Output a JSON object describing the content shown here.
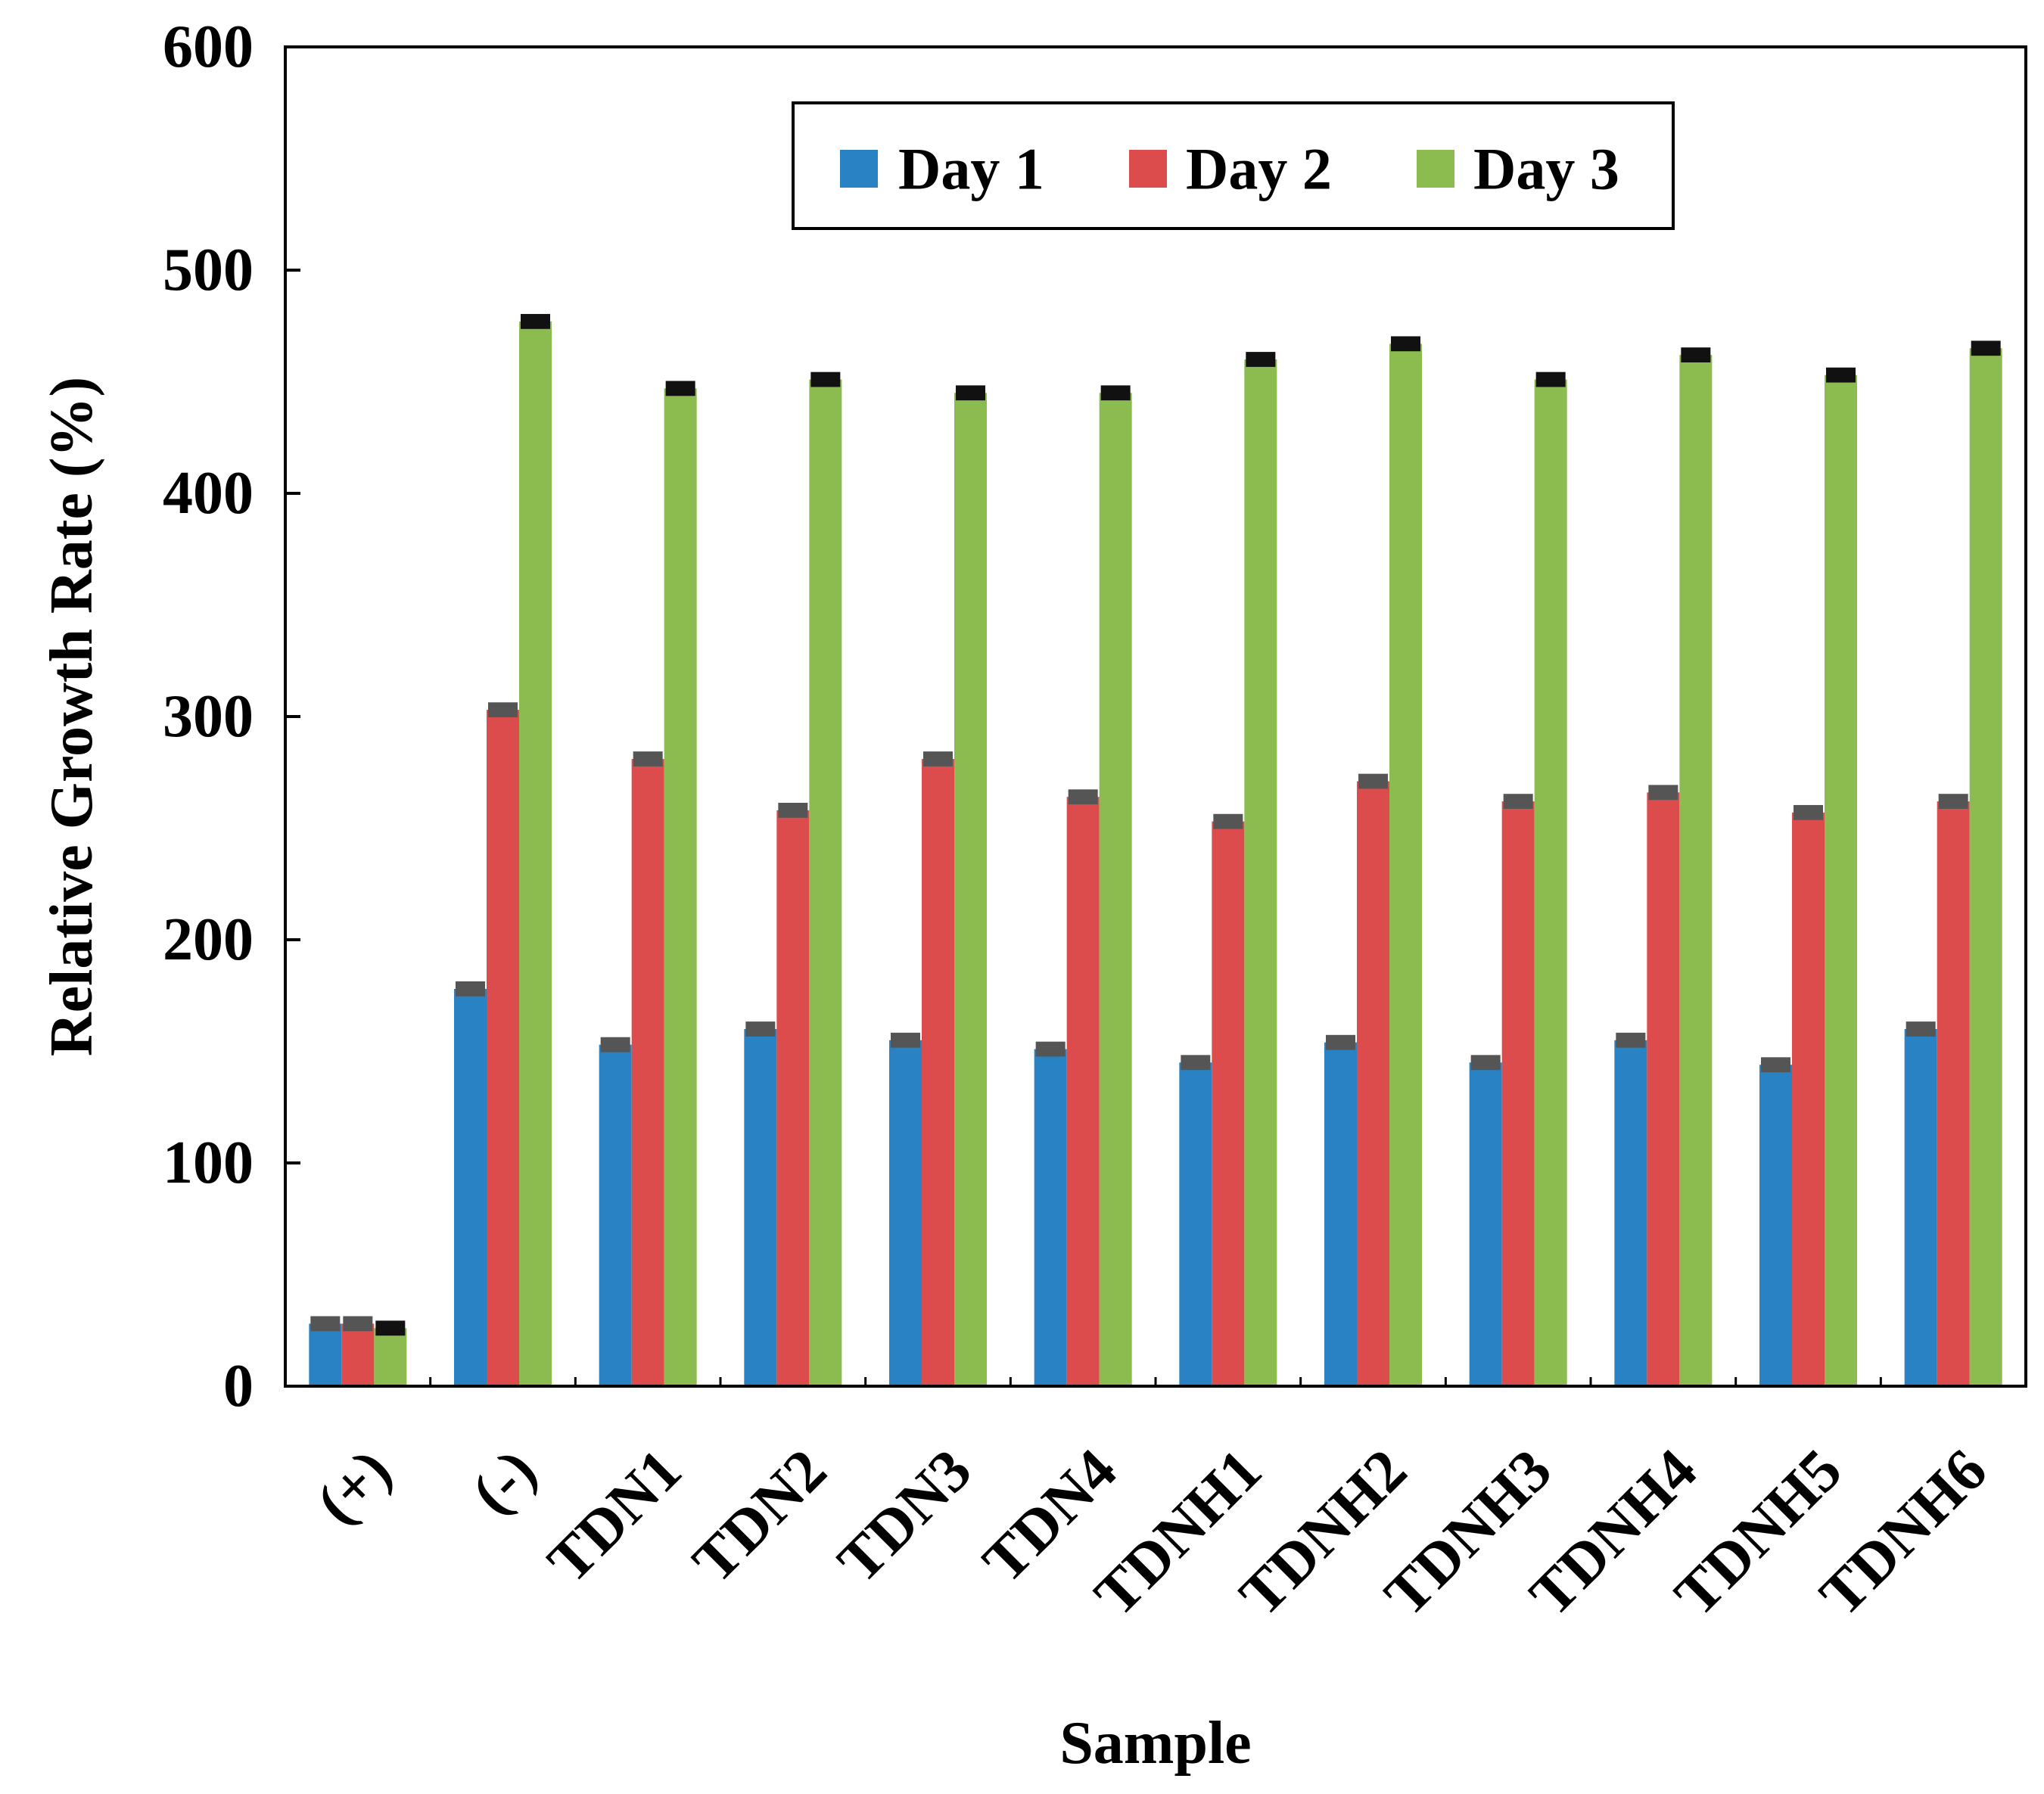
{
  "chart_data": {
    "type": "bar",
    "title": "",
    "xlabel": "Sample",
    "ylabel": "Relative Growth Rate (%)",
    "ylim": [
      0,
      600
    ],
    "yticks": [
      0,
      100,
      200,
      300,
      400,
      500,
      600
    ],
    "categories": [
      "(+)",
      "(-)",
      "TDN1",
      "TDN2",
      "TDN3",
      "TDN4",
      "TDNH1",
      "TDNH2",
      "TDNH3",
      "TDNH4",
      "TDNH5",
      "TDNH6"
    ],
    "series": [
      {
        "name": "Day 1",
        "color": "#2882c4",
        "values": [
          28,
          178,
          153,
          160,
          155,
          151,
          145,
          154,
          145,
          155,
          144,
          160
        ],
        "errors": [
          2,
          2,
          2,
          2,
          2,
          2,
          2,
          2,
          2,
          2,
          2,
          2
        ]
      },
      {
        "name": "Day 2",
        "color": "#dc4c4c",
        "values": [
          28,
          303,
          281,
          258,
          281,
          264,
          253,
          271,
          262,
          266,
          257,
          262
        ],
        "errors": [
          2,
          2,
          2,
          2,
          2,
          2,
          2,
          2,
          2,
          2,
          2,
          2
        ]
      },
      {
        "name": "Day 3",
        "color": "#8cbc50",
        "values": [
          26,
          477,
          447,
          451,
          445,
          445,
          460,
          467,
          451,
          462,
          453,
          465
        ],
        "errors": [
          2,
          2,
          2,
          2,
          2,
          2,
          2,
          2,
          2,
          2,
          2,
          2
        ]
      }
    ],
    "legend": {
      "position": "top-center",
      "entries": [
        "Day 1",
        "Day 2",
        "Day 3"
      ]
    },
    "grid": false
  }
}
